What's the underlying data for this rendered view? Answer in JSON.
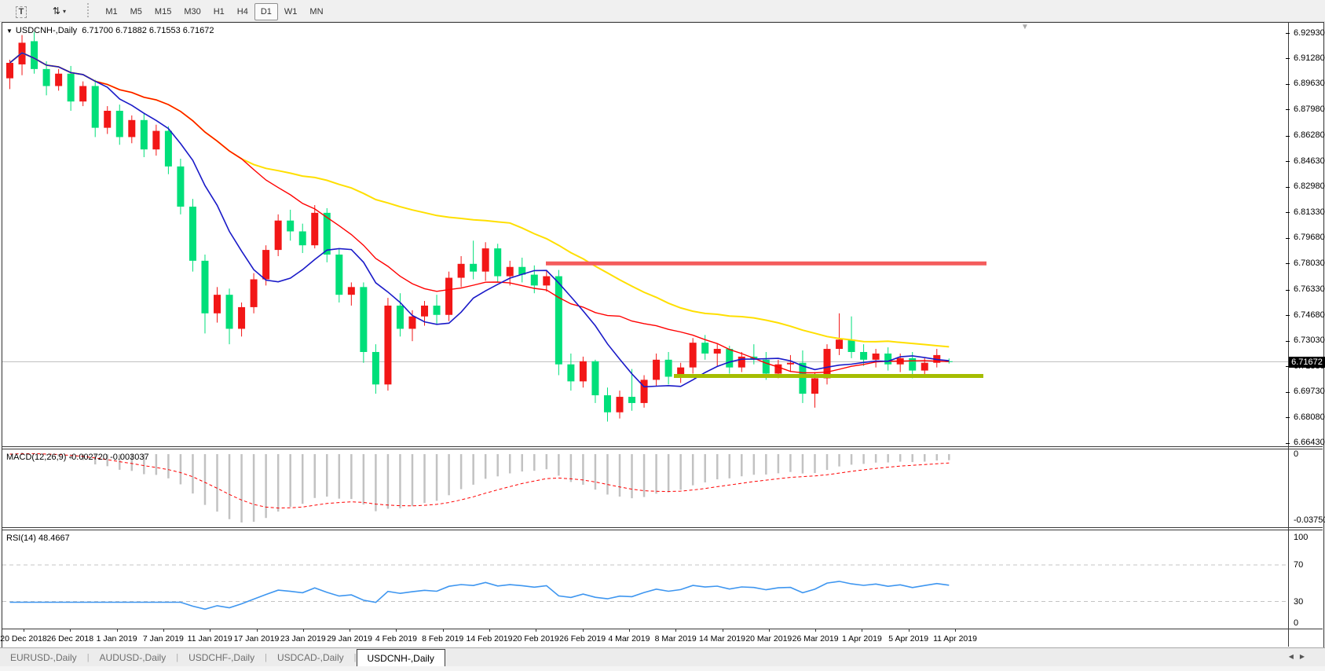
{
  "toolbar": {
    "text_tool_label": "T",
    "windows_icon_glyph": "⇅",
    "dropdown_caret": "▾",
    "timeframes": [
      "M1",
      "M5",
      "M15",
      "M30",
      "H1",
      "H4",
      "D1",
      "W1",
      "MN"
    ],
    "active_timeframe": "D1"
  },
  "chart": {
    "collapse_triangle": "▼",
    "title_symbol": "USDCNH-,Daily",
    "ohlc": "6.71700 6.71882 6.71553 6.71672",
    "open": "6.71700",
    "high": "6.71882",
    "low": "6.71553",
    "close": "6.71672",
    "shift_marker": "▼"
  },
  "price_axis": {
    "ticks": [
      "6.92930",
      "6.91280",
      "6.89630",
      "6.87980",
      "6.86280",
      "6.84630",
      "6.82980",
      "6.81330",
      "6.79680",
      "6.78030",
      "6.76330",
      "6.74680",
      "6.73030",
      "6.71380",
      "6.69730",
      "6.68080",
      "6.66430"
    ],
    "max": 6.9293,
    "min": 6.6643,
    "current_price": "6.71672"
  },
  "macd": {
    "title": "MACD(12,26,9)",
    "value_main": "-0.002720",
    "value_signal": "-0.003037",
    "scale_zero": "0",
    "scale_min": "-0.037508"
  },
  "rsi": {
    "title": "RSI(14)",
    "value": "48.4667",
    "levels": [
      "100",
      "70",
      "30",
      "0"
    ],
    "level_values": [
      100,
      70,
      30,
      0
    ],
    "overbought": 70,
    "oversold": 30
  },
  "dates": [
    "20 Dec 2018",
    "26 Dec 2018",
    "1 Jan 2019",
    "7 Jan 2019",
    "11 Jan 2019",
    "17 Jan 2019",
    "23 Jan 2019",
    "29 Jan 2019",
    "4 Feb 2019",
    "8 Feb 2019",
    "14 Feb 2019",
    "20 Feb 2019",
    "26 Feb 2019",
    "4 Mar 2019",
    "8 Mar 2019",
    "14 Mar 2019",
    "20 Mar 2019",
    "26 Mar 2019",
    "1 Apr 2019",
    "5 Apr 2019",
    "11 Apr 2019"
  ],
  "tabs": {
    "items": [
      "EURUSD-,Daily",
      "AUDUSD-,Daily",
      "USDCHF-,Daily",
      "USDCAD-,Daily",
      "USDCNH-,Daily"
    ],
    "active": "USDCNH-,Daily",
    "scroll_left": "◀",
    "scroll_right": "▶"
  },
  "colors": {
    "bull_candle": "#f21717",
    "bear_candle": "#00df7a",
    "ma_fast": "#1a1ac8",
    "ma_mid": "#ff0000",
    "ma_slow": "#ffdf00",
    "resistance_line": "#f45c5c",
    "support_line": "#a5bd00",
    "macd_histogram": "#c2c2c2",
    "macd_signal": "#ff0000",
    "rsi_line": "#3e96f0",
    "level_dash": "#c4c4c4",
    "current_price_line": "#bdbdbd"
  },
  "chart_data": {
    "type": "candlestick",
    "symbol": "USDCNH",
    "timeframe": "Daily",
    "ohlc_last": [
      6.717,
      6.71882,
      6.71553,
      6.71672
    ],
    "candles": [
      [
        6.9,
        6.912,
        6.893,
        6.91
      ],
      [
        6.909,
        6.928,
        6.902,
        6.923
      ],
      [
        6.924,
        6.93,
        6.903,
        6.906
      ],
      [
        6.906,
        6.911,
        6.889,
        6.895
      ],
      [
        6.895,
        6.906,
        6.892,
        6.903
      ],
      [
        6.903,
        6.908,
        6.879,
        6.885
      ],
      [
        6.885,
        6.898,
        6.882,
        6.895
      ],
      [
        6.895,
        6.899,
        6.862,
        6.868
      ],
      [
        6.868,
        6.882,
        6.864,
        6.879
      ],
      [
        6.879,
        6.883,
        6.857,
        6.862
      ],
      [
        6.862,
        6.876,
        6.858,
        6.873
      ],
      [
        6.873,
        6.877,
        6.849,
        6.854
      ],
      [
        6.854,
        6.87,
        6.85,
        6.866
      ],
      [
        6.866,
        6.869,
        6.838,
        6.843
      ],
      [
        6.843,
        6.848,
        6.812,
        6.817
      ],
      [
        6.817,
        6.822,
        6.775,
        6.782
      ],
      [
        6.782,
        6.786,
        6.735,
        6.748
      ],
      [
        6.748,
        6.765,
        6.742,
        6.76
      ],
      [
        6.76,
        6.764,
        6.728,
        6.738
      ],
      [
        6.738,
        6.755,
        6.733,
        6.752
      ],
      [
        6.752,
        6.774,
        6.748,
        6.77
      ],
      [
        6.77,
        6.792,
        6.766,
        6.789
      ],
      [
        6.789,
        6.812,
        6.785,
        6.808
      ],
      [
        6.808,
        6.815,
        6.795,
        6.801
      ],
      [
        6.801,
        6.806,
        6.787,
        6.792
      ],
      [
        6.792,
        6.818,
        6.79,
        6.813
      ],
      [
        6.813,
        6.816,
        6.781,
        6.786
      ],
      [
        6.786,
        6.79,
        6.755,
        6.76
      ],
      [
        6.76,
        6.768,
        6.753,
        6.765
      ],
      [
        6.765,
        6.768,
        6.716,
        6.723
      ],
      [
        6.723,
        6.728,
        6.696,
        6.702
      ],
      [
        6.702,
        6.758,
        6.698,
        6.753
      ],
      [
        6.753,
        6.761,
        6.733,
        6.738
      ],
      [
        6.738,
        6.75,
        6.73,
        6.746
      ],
      [
        6.746,
        6.756,
        6.74,
        6.753
      ],
      [
        6.753,
        6.76,
        6.741,
        6.747
      ],
      [
        6.747,
        6.775,
        6.743,
        6.771
      ],
      [
        6.771,
        6.785,
        6.765,
        6.78
      ],
      [
        6.78,
        6.795,
        6.77,
        6.775
      ],
      [
        6.775,
        6.794,
        6.769,
        6.79
      ],
      [
        6.79,
        6.793,
        6.768,
        6.772
      ],
      [
        6.772,
        6.782,
        6.766,
        6.778
      ],
      [
        6.778,
        6.784,
        6.768,
        6.773
      ],
      [
        6.773,
        6.779,
        6.761,
        6.766
      ],
      [
        6.766,
        6.776,
        6.762,
        6.772
      ],
      [
        6.772,
        6.776,
        6.708,
        6.715
      ],
      [
        6.715,
        6.722,
        6.698,
        6.704
      ],
      [
        6.704,
        6.72,
        6.7,
        6.717
      ],
      [
        6.717,
        6.718,
        6.69,
        6.695
      ],
      [
        6.695,
        6.7,
        6.678,
        6.684
      ],
      [
        6.684,
        6.698,
        6.68,
        6.694
      ],
      [
        6.694,
        6.712,
        6.685,
        6.69
      ],
      [
        6.69,
        6.708,
        6.687,
        6.705
      ],
      [
        6.705,
        6.722,
        6.701,
        6.718
      ],
      [
        6.718,
        6.723,
        6.702,
        6.707
      ],
      [
        6.707,
        6.716,
        6.703,
        6.713
      ],
      [
        6.713,
        6.732,
        6.709,
        6.729
      ],
      [
        6.729,
        6.734,
        6.718,
        6.722
      ],
      [
        6.722,
        6.728,
        6.714,
        6.725
      ],
      [
        6.725,
        6.727,
        6.709,
        6.713
      ],
      [
        6.713,
        6.723,
        6.71,
        6.72
      ],
      [
        6.72,
        6.728,
        6.715,
        6.718
      ],
      [
        6.718,
        6.723,
        6.705,
        6.709
      ],
      [
        6.709,
        6.718,
        6.706,
        6.715
      ],
      [
        6.715,
        6.721,
        6.71,
        6.716
      ],
      [
        6.716,
        6.724,
        6.69,
        6.696
      ],
      [
        6.696,
        6.71,
        6.687,
        6.706
      ],
      [
        6.706,
        6.728,
        6.702,
        6.725
      ],
      [
        6.725,
        6.748,
        6.721,
        6.731
      ],
      [
        6.731,
        6.746,
        6.719,
        6.723
      ],
      [
        6.723,
        6.728,
        6.714,
        6.718
      ],
      [
        6.718,
        6.725,
        6.713,
        6.722
      ],
      [
        6.722,
        6.726,
        6.711,
        6.715
      ],
      [
        6.715,
        6.722,
        6.71,
        6.719
      ],
      [
        6.719,
        6.723,
        6.706,
        6.711
      ],
      [
        6.711,
        6.719,
        6.708,
        6.716
      ],
      [
        6.716,
        6.725,
        6.713,
        6.721
      ],
      [
        6.717,
        6.71882,
        6.71553,
        6.71672
      ]
    ],
    "moving_averages": [
      {
        "name": "fast",
        "period": 8,
        "color_key": "ma_fast"
      },
      {
        "name": "mid",
        "period": 20,
        "color_key": "ma_mid"
      },
      {
        "name": "slow",
        "period": 42,
        "color_key": "ma_slow"
      }
    ],
    "horizontal_levels": [
      {
        "name": "resistance",
        "price": 6.7803,
        "color_key": "resistance_line"
      },
      {
        "name": "support",
        "price": 6.7075,
        "color_key": "support_line"
      }
    ],
    "indicators": [
      {
        "name": "MACD",
        "params": [
          12,
          26,
          9
        ],
        "last_main": -0.00272,
        "last_signal": -0.003037,
        "scale_min": -0.037508
      },
      {
        "name": "RSI",
        "params": [
          14
        ],
        "last": 48.4667,
        "scale": [
          0,
          100
        ],
        "levels": [
          30,
          70
        ]
      }
    ]
  }
}
